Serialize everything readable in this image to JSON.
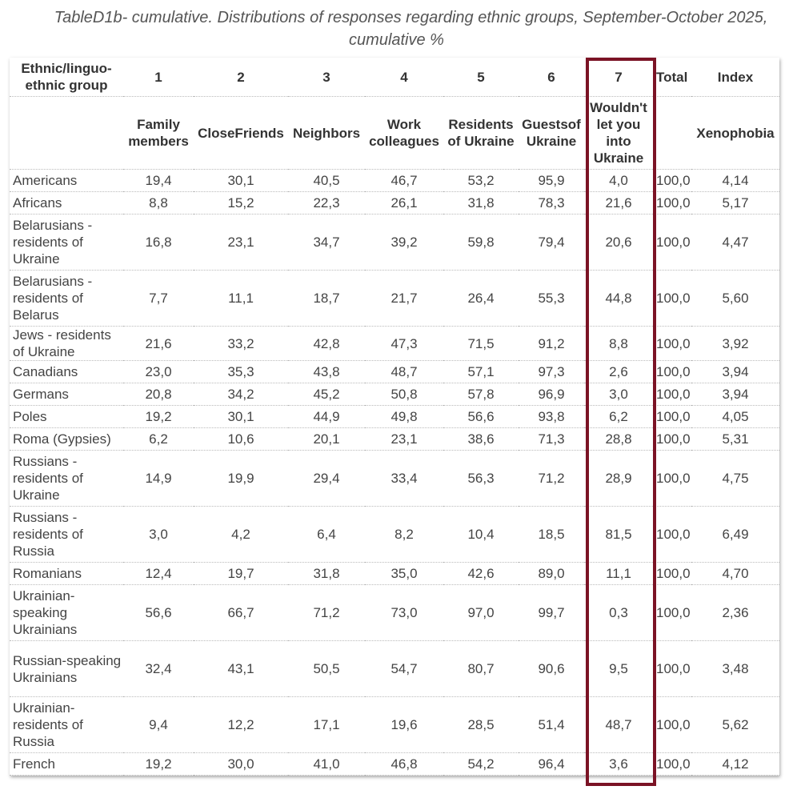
{
  "title": {
    "line1": "TableD1b- cumulative. Distributions of responses regarding ethnic groups, September-October 2025,",
    "line2": "cumulative %"
  },
  "header": {
    "group": "Ethnic/linguo-ethnic group",
    "numbers": [
      "1",
      "2",
      "3",
      "4",
      "5",
      "6",
      "7"
    ],
    "total": "Total",
    "index": "Index",
    "labels": [
      "Family members",
      "CloseFriends",
      "Neighbors",
      "Work colleagues",
      "Residents of Ukraine",
      "Guestsof Ukraine",
      "Wouldn't let you into Ukraine"
    ],
    "index_label": "Xenophobia"
  },
  "highlight_color": "#7b1325",
  "rows": [
    {
      "name": "Americans",
      "values": [
        "19,4",
        "30,1",
        "40,5",
        "46,7",
        "53,2",
        "95,9",
        "4,0"
      ],
      "total": "100,0",
      "index": "4,14"
    },
    {
      "name": "Africans",
      "values": [
        "8,8",
        "15,2",
        "22,3",
        "26,1",
        "31,8",
        "78,3",
        "21,6"
      ],
      "total": "100,0",
      "index": "5,17"
    },
    {
      "name": "Belarusians - residents of Ukraine",
      "values": [
        "16,8",
        "23,1",
        "34,7",
        "39,2",
        "59,8",
        "79,4",
        "20,6"
      ],
      "total": "100,0",
      "index": "4,47"
    },
    {
      "name": "Belarusians - residents of Belarus",
      "values": [
        "7,7",
        "11,1",
        "18,7",
        "21,7",
        "26,4",
        "55,3",
        "44,8"
      ],
      "total": "100,0",
      "index": "5,60"
    },
    {
      "name": "Jews - residents of Ukraine",
      "values": [
        "21,6",
        "33,2",
        "42,8",
        "47,3",
        "71,5",
        "91,2",
        "8,8"
      ],
      "total": "100,0",
      "index": "3,92"
    },
    {
      "name": "Canadians",
      "values": [
        "23,0",
        "35,3",
        "43,8",
        "48,7",
        "57,1",
        "97,3",
        "2,6"
      ],
      "total": "100,0",
      "index": "3,94"
    },
    {
      "name": "Germans",
      "values": [
        "20,8",
        "34,2",
        "45,2",
        "50,8",
        "57,8",
        "96,9",
        "3,0"
      ],
      "total": "100,0",
      "index": "3,94"
    },
    {
      "name": "Poles",
      "values": [
        "19,2",
        "30,1",
        "44,9",
        "49,8",
        "56,6",
        "93,8",
        "6,2"
      ],
      "total": "100,0",
      "index": "4,05"
    },
    {
      "name": "Roma (Gypsies)",
      "values": [
        "6,2",
        "10,6",
        "20,1",
        "23,1",
        "38,6",
        "71,3",
        "28,8"
      ],
      "total": "100,0",
      "index": "5,31"
    },
    {
      "name": "Russians - residents of Ukraine",
      "values": [
        "14,9",
        "19,9",
        "29,4",
        "33,4",
        "56,3",
        "71,2",
        "28,9"
      ],
      "total": "100,0",
      "index": "4,75"
    },
    {
      "name": "Russians - residents of Russia",
      "values": [
        "3,0",
        "4,2",
        "6,4",
        "8,2",
        "10,4",
        "18,5",
        "81,5"
      ],
      "total": "100,0",
      "index": "6,49"
    },
    {
      "name": "Romanians",
      "values": [
        "12,4",
        "19,7",
        "31,8",
        "35,0",
        "42,6",
        "89,0",
        "11,1"
      ],
      "total": "100,0",
      "index": "4,70"
    },
    {
      "name": "Ukrainian-speaking Ukrainians",
      "values": [
        "56,6",
        "66,7",
        "71,2",
        "73,0",
        "97,0",
        "99,7",
        "0,3"
      ],
      "total": "100,0",
      "index": "2,36"
    },
    {
      "name": "Russian-speaking Ukrainians",
      "values": [
        "32,4",
        "43,1",
        "50,5",
        "54,7",
        "80,7",
        "90,6",
        "9,5"
      ],
      "total": "100,0",
      "index": "3,48"
    },
    {
      "name": "Ukrainian-residents of Russia",
      "values": [
        "9,4",
        "12,2",
        "17,1",
        "19,6",
        "28,5",
        "51,4",
        "48,7"
      ],
      "total": "100,0",
      "index": "5,62"
    },
    {
      "name": "French",
      "values": [
        "19,2",
        "30,0",
        "41,0",
        "46,8",
        "54,2",
        "96,4",
        "3,6"
      ],
      "total": "100,0",
      "index": "4,12"
    }
  ]
}
